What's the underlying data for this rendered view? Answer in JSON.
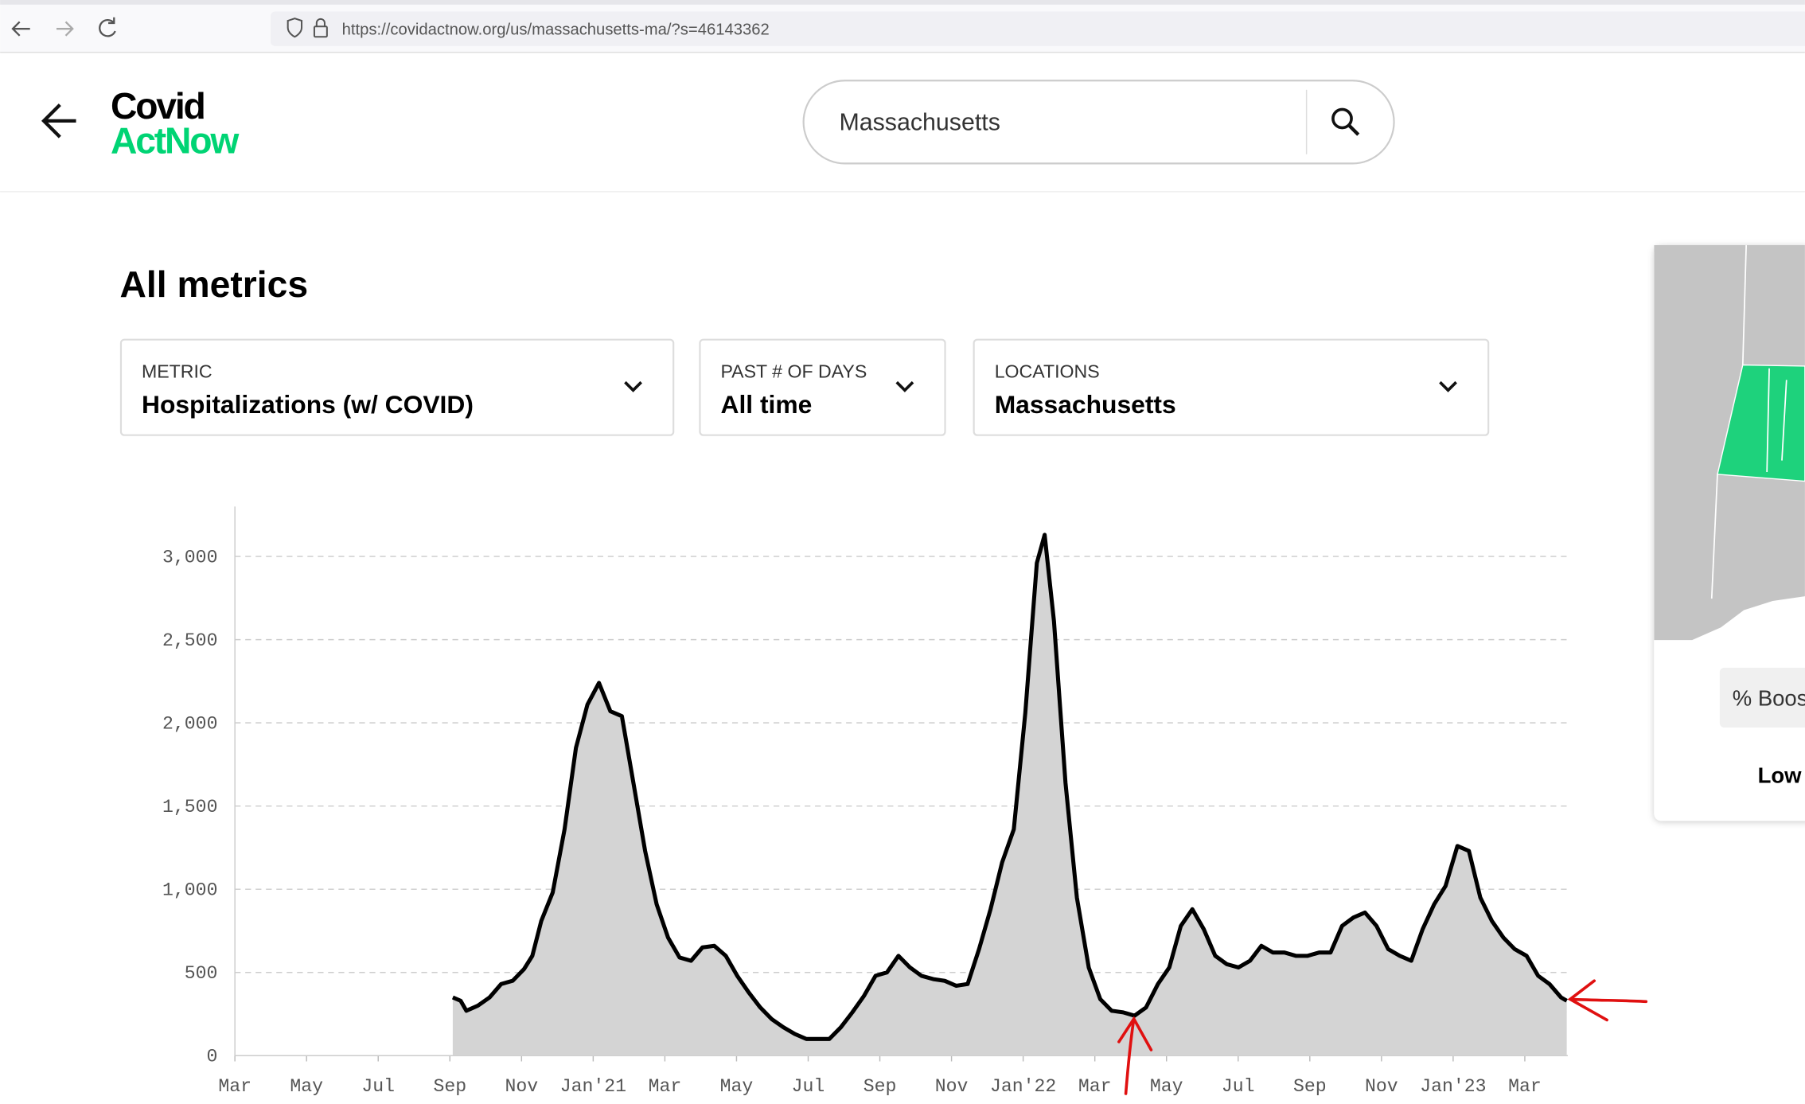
{
  "browser": {
    "url": "https://covidactnow.org/us/massachusetts-ma/?s=46143362"
  },
  "logo": {
    "line1": "Covid",
    "line2": "ActNow"
  },
  "search": {
    "value": "Massachusetts"
  },
  "heading": "All metrics",
  "dropdowns": [
    {
      "label": "METRIC",
      "value": "Hospitalizations (w/ COVID)"
    },
    {
      "label": "PAST # OF DAYS",
      "value": "All time"
    },
    {
      "label": "LOCATIONS",
      "value": "Massachusetts"
    }
  ],
  "side_card": {
    "chip": "% Boos",
    "level": "Low"
  },
  "chart_data": {
    "type": "line",
    "x": [
      6.08,
      6.3,
      6.46,
      6.78,
      7.11,
      7.43,
      7.75,
      8.07,
      8.3,
      8.55,
      8.87,
      9.2,
      9.52,
      9.84,
      10.16,
      10.48,
      10.8,
      11.12,
      11.45,
      11.77,
      12.09,
      12.41,
      12.73,
      13.05,
      13.38,
      13.7,
      14.02,
      14.34,
      14.66,
      14.98,
      15.31,
      15.63,
      15.95,
      16.27,
      16.59,
      16.91,
      17.23,
      17.56,
      17.88,
      18.2,
      18.52,
      18.84,
      19.16,
      19.49,
      19.81,
      20.13,
      20.45,
      20.77,
      21.09,
      21.41,
      21.74,
      22.06,
      22.38,
      22.6,
      22.86,
      23.18,
      23.5,
      23.83,
      24.15,
      24.47,
      24.79,
      25.11,
      25.43,
      25.76,
      26.08,
      26.4,
      26.72,
      27.04,
      27.36,
      27.68,
      28.01,
      28.33,
      28.65,
      28.97,
      29.29,
      29.61,
      29.94,
      30.26,
      30.58,
      30.9,
      31.22,
      31.54,
      31.86,
      32.19,
      32.51,
      32.83,
      33.15,
      33.47,
      33.79,
      34.12,
      34.44,
      34.76,
      35.08,
      35.4,
      35.72,
      36.05,
      36.37,
      36.69,
      37.01,
      37.17
    ],
    "series": [
      {
        "color": "#000000",
        "fill": "#d4d4d4",
        "values": [
          350,
          330,
          270,
          300,
          350,
          430,
          450,
          520,
          600,
          810,
          980,
          1360,
          1850,
          2110,
          2240,
          2070,
          2040,
          1640,
          1230,
          910,
          710,
          590,
          570,
          650,
          660,
          600,
          480,
          380,
          290,
          220,
          170,
          130,
          100,
          100,
          100,
          170,
          260,
          360,
          480,
          500,
          600,
          530,
          480,
          460,
          450,
          420,
          430,
          640,
          880,
          1160,
          1360,
          2060,
          2960,
          3130,
          2610,
          1640,
          950,
          530,
          340,
          270,
          260,
          240,
          290,
          430,
          530,
          780,
          880,
          760,
          600,
          550,
          530,
          570,
          660,
          620,
          620,
          600,
          600,
          620,
          620,
          780,
          830,
          860,
          780,
          640,
          600,
          570,
          760,
          910,
          1020,
          1260,
          1230,
          950,
          810,
          710,
          640,
          600,
          480,
          430,
          350,
          330
        ]
      }
    ],
    "xlim": [
      0,
      37.2
    ],
    "xticks": [
      {
        "value": 0,
        "label": "Mar"
      },
      {
        "value": 2,
        "label": "May"
      },
      {
        "value": 4,
        "label": "Jul"
      },
      {
        "value": 6,
        "label": "Sep"
      },
      {
        "value": 8,
        "label": "Nov"
      },
      {
        "value": 10,
        "label": "Jan'21"
      },
      {
        "value": 12,
        "label": "Mar"
      },
      {
        "value": 14,
        "label": "May"
      },
      {
        "value": 16,
        "label": "Jul"
      },
      {
        "value": 18,
        "label": "Sep"
      },
      {
        "value": 20,
        "label": "Nov"
      },
      {
        "value": 22,
        "label": "Jan'22"
      },
      {
        "value": 24,
        "label": "Mar"
      },
      {
        "value": 26,
        "label": "May"
      },
      {
        "value": 28,
        "label": "Jul"
      },
      {
        "value": 30,
        "label": "Sep"
      },
      {
        "value": 32,
        "label": "Nov"
      },
      {
        "value": 34,
        "label": "Jan'23"
      },
      {
        "value": 36,
        "label": "Mar"
      }
    ],
    "ylim": [
      0,
      3300
    ],
    "yticks": [
      0,
      500,
      {
        "value": 1000,
        "label": "1,000"
      },
      {
        "value": 1500,
        "label": "1,500"
      },
      {
        "value": 2000,
        "label": "2,000"
      },
      {
        "value": 2500,
        "label": "2,500"
      },
      {
        "value": 3000,
        "label": "3,000"
      }
    ],
    "grid": true
  }
}
